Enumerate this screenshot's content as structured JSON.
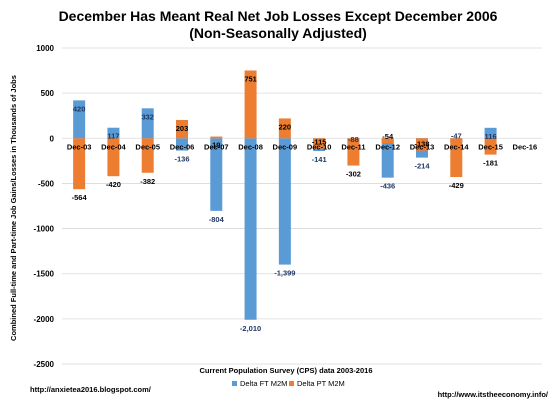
{
  "chart_data": {
    "type": "bar",
    "title": "December Has Meant Real Net Job Losses Except December 2006",
    "subtitle": "(Non-Seasonally Adjusted)",
    "xlabel": "Current Population Survey (CPS) data 2003-2016",
    "ylabel": "Combined Full-time and Part-time Job Gains/Losses in Thousands of Jobs",
    "ylim": [
      -2500,
      1000
    ],
    "yticks": [
      1000,
      500,
      0,
      -500,
      -1000,
      -1500,
      -2000,
      -2500
    ],
    "grid": true,
    "legend_position": "bottom",
    "categories": [
      "Dec-03",
      "Dec-04",
      "Dec-05",
      "Dec-06",
      "Dec-07",
      "Dec-08",
      "Dec-09",
      "Dec-10",
      "Dec-11",
      "Dec-12",
      "Dec-13",
      "Dec-14",
      "Dec-15",
      "Dec-16"
    ],
    "series": [
      {
        "name": "Delta FT M2M",
        "color": "#5b9bd5",
        "values": [
          420,
          117,
          332,
          -136,
          -804,
          -2010,
          -1399,
          -141,
          -88,
          -436,
          -214,
          -47,
          116,
          null
        ],
        "labels": [
          "420",
          "117",
          "332",
          "-136",
          "-804",
          "-2,010",
          "-1,399",
          "-141",
          "-88",
          "-436",
          "-214",
          "-47",
          "116",
          ""
        ]
      },
      {
        "name": "Delta PT M2M",
        "color": "#ed7d31",
        "values": [
          -564,
          -420,
          -382,
          203,
          19,
          751,
          220,
          -115,
          -302,
          -54,
          -138,
          -429,
          -181,
          null
        ],
        "labels": [
          "-564",
          "-420",
          "-382",
          "203",
          "19",
          "751",
          "220",
          "-115",
          "-302",
          "-54",
          "-138",
          "-429",
          "-181",
          ""
        ]
      }
    ]
  },
  "footer": {
    "left": "http://anxietea2016.blogspot.com/",
    "right": "http://www.itstheeconomy.info/"
  }
}
